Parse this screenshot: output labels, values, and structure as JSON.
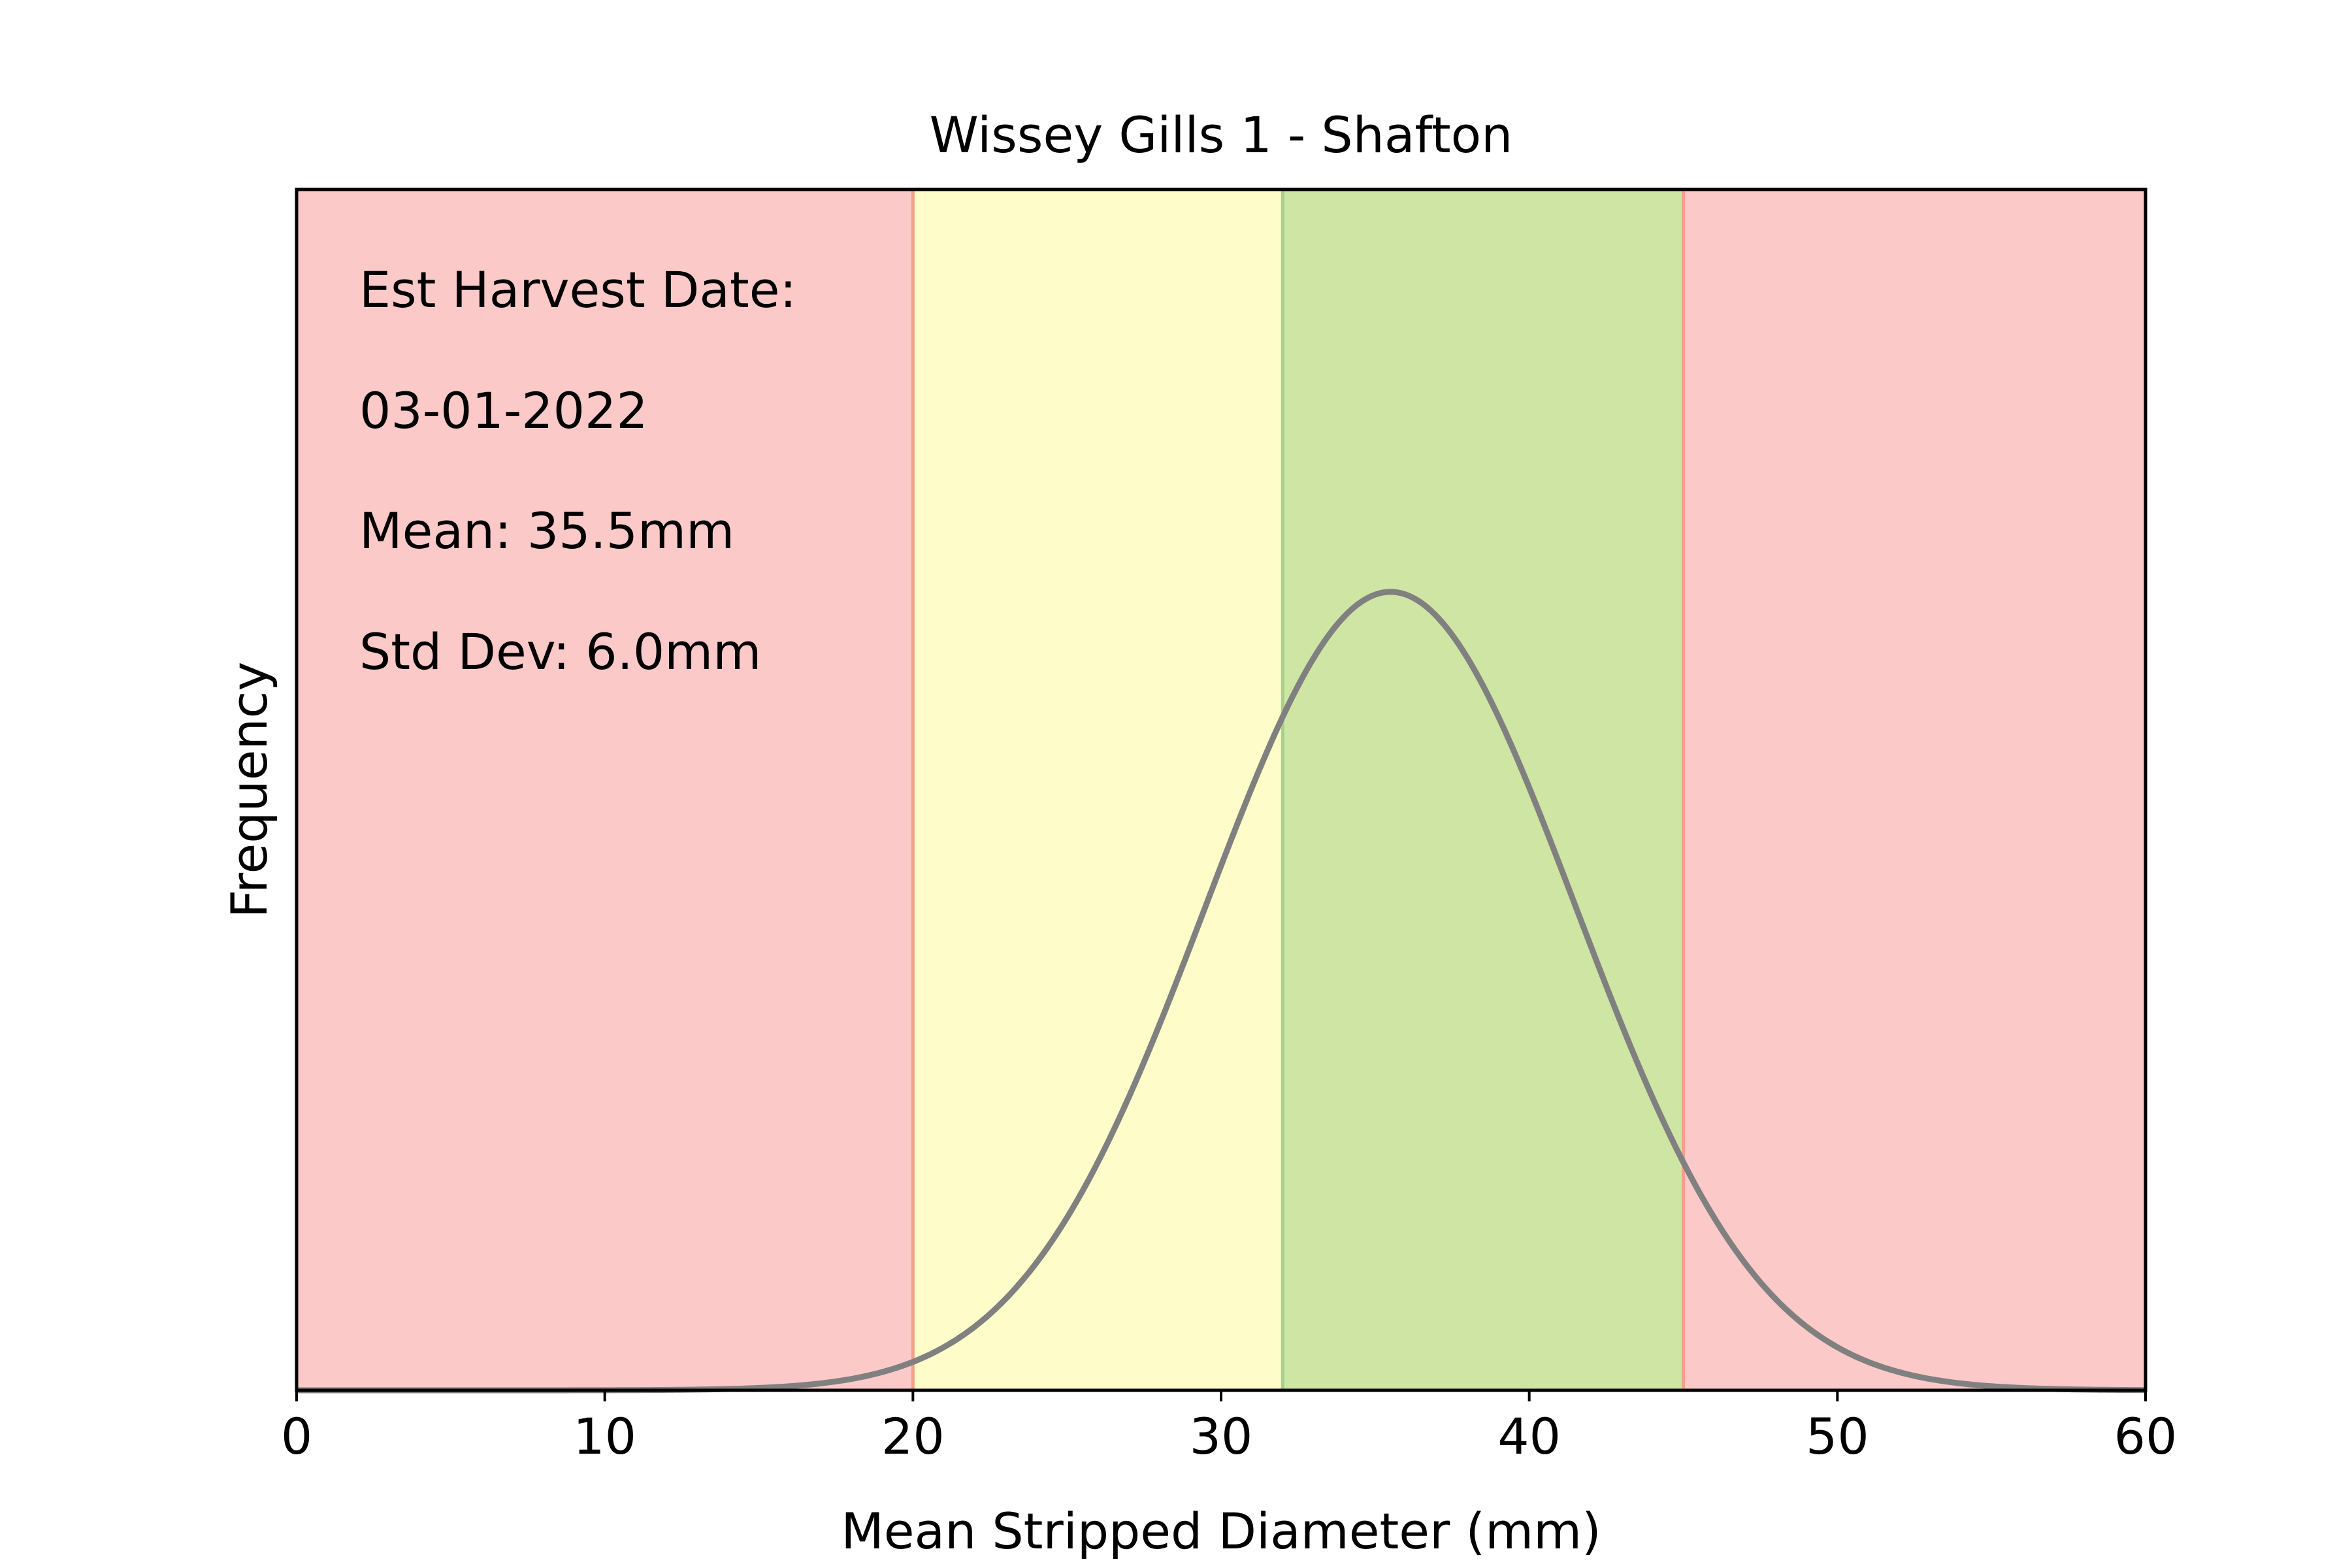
{
  "chart_data": {
    "type": "line",
    "title": "Wissey Gills 1 - Shafton",
    "xlabel": "Mean Stripped Diameter (mm)",
    "ylabel": "Frequency",
    "xlim": [
      0,
      60
    ],
    "ylim": [
      0,
      0.1
    ],
    "xticks": [
      0,
      10,
      20,
      30,
      40,
      50,
      60
    ],
    "xtick_labels": [
      "0",
      "10",
      "20",
      "30",
      "40",
      "50",
      "60"
    ],
    "yticks_shown": false,
    "grid": false,
    "distribution": {
      "kind": "normal",
      "mean": 35.5,
      "std_dev": 6.0,
      "color": "#808080"
    },
    "bands": [
      {
        "from": 0,
        "to": 20,
        "color": "#fcc9c9",
        "edge": "#f4a08a"
      },
      {
        "from": 20,
        "to": 32,
        "color": "#fefcc8",
        "edge": "#a8d08d"
      },
      {
        "from": 32,
        "to": 45,
        "color": "#cee5a4",
        "edge": "#f4a08a"
      },
      {
        "from": 45,
        "to": 60,
        "color": "#fcc9c9",
        "edge": "#f4a08a"
      }
    ],
    "annotations": [
      "Est Harvest Date:",
      "03-01-2022",
      "Mean: 35.5mm",
      "Std Dev: 6.0mm"
    ]
  }
}
